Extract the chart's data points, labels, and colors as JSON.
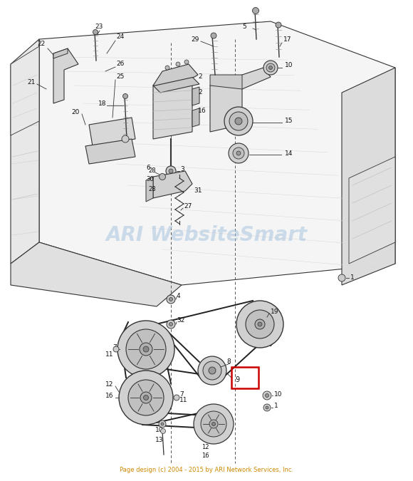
{
  "bg_color": "#ffffff",
  "watermark": "ARI WebsiteSmart",
  "watermark_color": "#aac4e0",
  "watermark_alpha": 0.55,
  "footer": "Page design (c) 2004 - 2015 by ARI Network Services, Inc.",
  "footer_color": "#cc8800",
  "fig_width": 5.8,
  "fig_height": 6.75,
  "dpi": 100,
  "line_color": "#333333",
  "light_line_color": "#999999",
  "frame_face_top": "#f2f2f2",
  "frame_face_left": "#e8e8e8",
  "frame_face_right": "#dcdcdc",
  "frame_face_front": "#e4e4e4",
  "pulley_outer": "#c8c8c8",
  "pulley_inner": "#b0b0b0",
  "pulley_hub": "#888888",
  "belt_color": "#222222"
}
